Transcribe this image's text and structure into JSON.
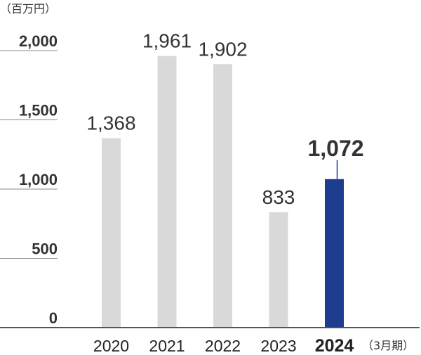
{
  "chart_data": {
    "type": "bar",
    "unit_label": "（百万円）",
    "period_label": "（3月期）",
    "categories": [
      "2020",
      "2021",
      "2022",
      "2023",
      "2024"
    ],
    "values": [
      1368,
      1961,
      1902,
      833,
      1072
    ],
    "value_labels": [
      "1,368",
      "1,961",
      "1,902",
      "833",
      "1,072"
    ],
    "highlight_index": 4,
    "ylim": [
      0,
      2000
    ],
    "yticks": [
      0,
      500,
      1000,
      1500,
      2000
    ],
    "ytick_labels": [
      "0",
      "500",
      "1,000",
      "1,500",
      "2,000"
    ],
    "grid": false,
    "colors": {
      "bar": "#d9d9d9",
      "highlight": "#1e3d8f",
      "axis": "#555555",
      "tick": "#888888"
    }
  }
}
